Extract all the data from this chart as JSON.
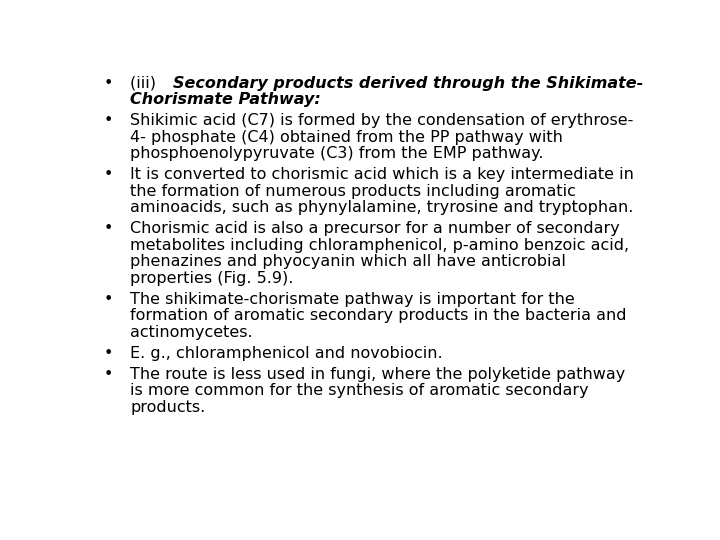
{
  "background_color": "#ffffff",
  "bullet_char": "•",
  "text_color": "#000000",
  "fontsize": 11.5,
  "bullet_points": [
    {
      "text": "(iii) Secondary products derived through the Shikimate-\nChorismate Pathway:",
      "bold_italic": true,
      "prefix_plain": "(iii) ",
      "suffix_bold_italic": "Secondary products derived through the Shikimate-\nChorismate Pathway:"
    },
    {
      "text": "Shikimic acid (C7) is formed by the condensation of erythrose-\n4- phosphate (C4) obtained from the PP pathway with\nphosphoenolypyruvate (C3) from the EMP pathway.",
      "bold_italic": false
    },
    {
      "text": "It is converted to chorismic acid which is a key intermediate in\nthe formation of numerous products including aromatic\naminoacids, such as phynylalamine, tryrosine and tryptophan.",
      "bold_italic": false
    },
    {
      "text": "Chorismic acid is also a precursor for a number of secondary\nmetabolites including chloramphenicol, p-amino benzoic acid,\nphenazines and phyocyanin which all have anticrobial\nproperties (Fig. 5.9).",
      "bold_italic": false
    },
    {
      "text": "The shikimate-chorismate pathway is important for the\nformation of aromatic secondary products in the bacteria and\nactinomycetes.",
      "bold_italic": false
    },
    {
      "text": "E. g., chloramphenicol and novobiocin.",
      "bold_italic": false
    },
    {
      "text": "The route is less used in fungi, where the polyketide pathway\nis more common for the synthesis of aromatic secondary\nproducts.",
      "bold_italic": false
    }
  ]
}
